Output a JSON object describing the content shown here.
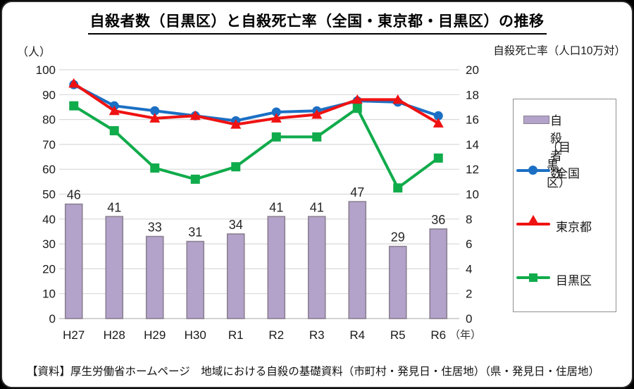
{
  "header": {
    "title": "自殺者数（目黒区）と自殺死亡率（全国・東京都・目黒区）の推移"
  },
  "chart_data": {
    "type": "combo-bar-line",
    "title": "自殺者数（目黒区）と自殺死亡率（全国・東京都・目黒区）の推移",
    "categories": [
      "H27",
      "H28",
      "H29",
      "H30",
      "R1",
      "R2",
      "R3",
      "R4",
      "R5",
      "R6"
    ],
    "x_axis_suffix": "（年）",
    "left_axis": {
      "label": "（人）",
      "min": 0,
      "max": 100,
      "step": 10
    },
    "right_axis": {
      "label": "自殺死亡率（人口10万対）",
      "min": 0,
      "max": 20,
      "step": 2
    },
    "bar_series": {
      "name": "自殺者数（目黒区）",
      "values": [
        46,
        41,
        33,
        31,
        34,
        41,
        41,
        47,
        29,
        36
      ],
      "color": "#b3a2c9",
      "border_color": "#8b8093"
    },
    "line_series": [
      {
        "name": "全国",
        "marker": "circle",
        "color": "#1b6fc4",
        "values": [
          18.8,
          17.1,
          16.7,
          16.3,
          15.9,
          16.6,
          16.7,
          17.5,
          17.4,
          16.3
        ]
      },
      {
        "name": "東京都",
        "marker": "triangle",
        "color": "#ef1212",
        "values": [
          18.9,
          16.7,
          16.1,
          16.3,
          15.6,
          16.1,
          16.4,
          17.6,
          17.6,
          15.7
        ]
      },
      {
        "name": "目黒区",
        "marker": "square",
        "color": "#10ab4b",
        "values": [
          17.1,
          15.1,
          12.1,
          11.2,
          12.2,
          14.6,
          14.6,
          16.9,
          10.5,
          12.9
        ]
      }
    ],
    "gridline_color": "#d9d9d9",
    "axis_text_color": "#1a1a1a",
    "bar_label_color": "#262626",
    "legend_position": "right"
  },
  "legend": {
    "bar_label_line1": "自殺者数",
    "bar_label_line2": "（目黒区）",
    "items": [
      "全国",
      "東京都",
      "目黒区"
    ]
  },
  "footer": {
    "source": "【資料】厚生労働省ホームページ　地域における自殺の基礎資料（市町村・発見日・住居地）（県・発見日・住居地）"
  }
}
